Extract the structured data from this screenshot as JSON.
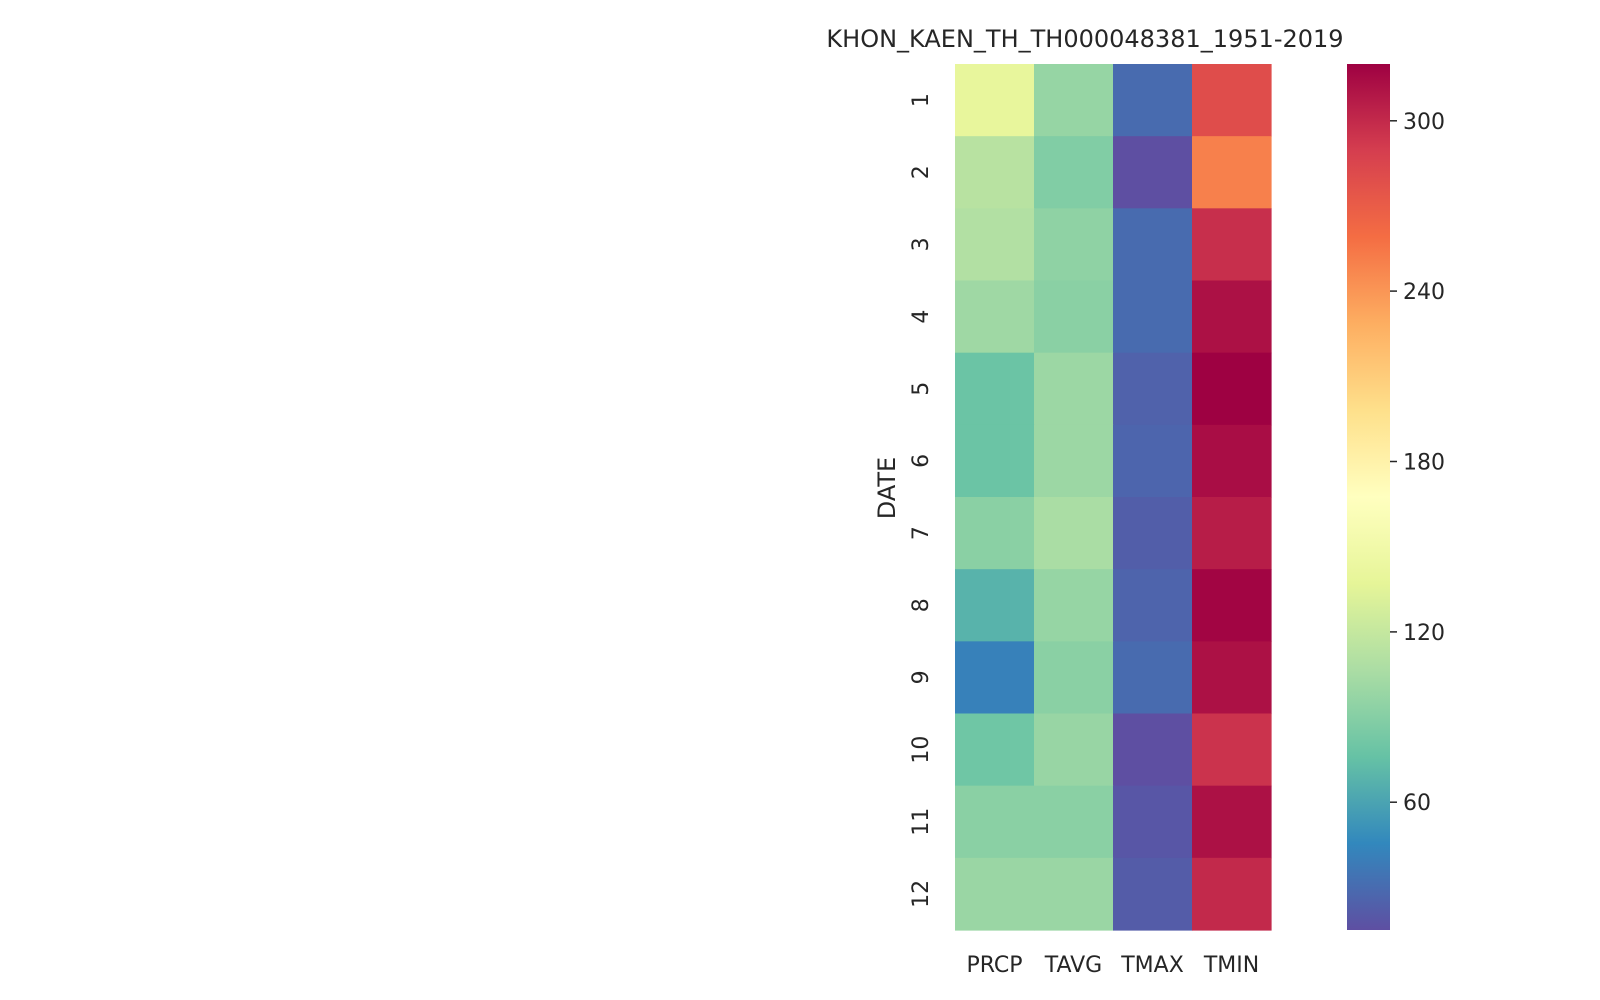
{
  "chart_data": {
    "type": "heatmap",
    "title": "KHON_KAEN_TH_TH000048381_1951-2019",
    "xlabel": "",
    "ylabel": "DATE",
    "x_categories": [
      "PRCP",
      "TAVG",
      "TMAX",
      "TMIN"
    ],
    "y_categories": [
      "1",
      "2",
      "3",
      "4",
      "5",
      "6",
      "7",
      "8",
      "9",
      "10",
      "11",
      "12"
    ],
    "values": [
      [
        140,
        97,
        30,
        280
      ],
      [
        113,
        88,
        12,
        250
      ],
      [
        110,
        94,
        30,
        297
      ],
      [
        101,
        92,
        30,
        312
      ],
      [
        78,
        100,
        25,
        320
      ],
      [
        78,
        100,
        27,
        314
      ],
      [
        92,
        106,
        23,
        306
      ],
      [
        68,
        97,
        26,
        318
      ],
      [
        42,
        92,
        30,
        312
      ],
      [
        80,
        98,
        14,
        295
      ],
      [
        92,
        92,
        19,
        312
      ],
      [
        99,
        99,
        22,
        300
      ]
    ],
    "colormap": "Spectral_r",
    "colorbar": {
      "vmin": 15,
      "vmax": 320,
      "ticks": [
        60,
        120,
        180,
        240,
        300
      ],
      "tick_labels": [
        "60",
        "120",
        "180",
        "240",
        "300"
      ]
    },
    "grid": false,
    "legend": "colorbar-right"
  }
}
